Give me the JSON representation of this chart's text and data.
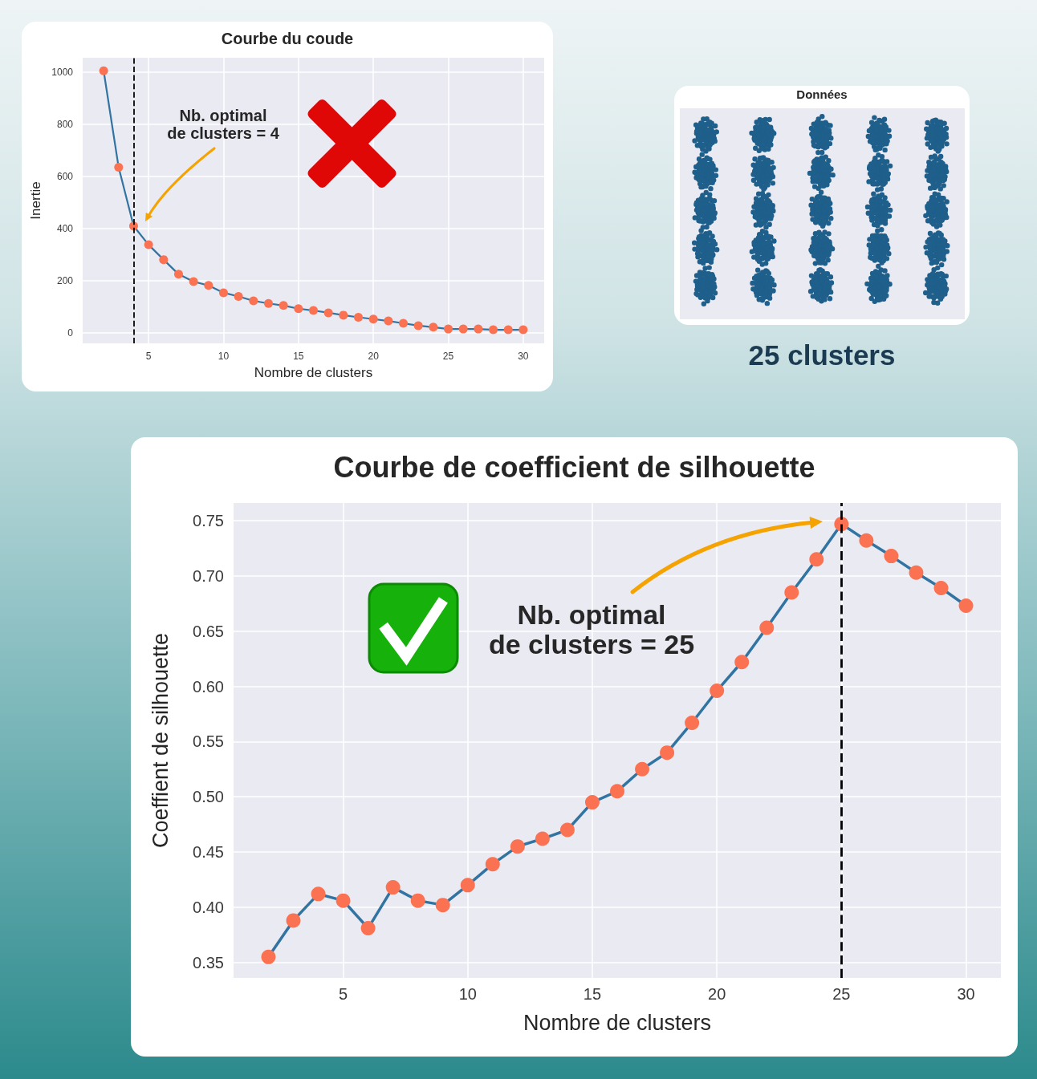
{
  "chart_data": [
    {
      "type": "line",
      "title": "Courbe du coude",
      "xlabel": "Nombre de clusters",
      "ylabel": "Inertie",
      "x": [
        2,
        3,
        4,
        5,
        6,
        7,
        8,
        9,
        10,
        11,
        12,
        13,
        14,
        15,
        16,
        17,
        18,
        19,
        20,
        21,
        22,
        23,
        24,
        25,
        26,
        27,
        28,
        29,
        30
      ],
      "series": [
        {
          "color": "#3274a1",
          "values": [
            1005,
            635,
            410,
            338,
            281,
            225,
            197,
            182,
            154,
            140,
            123,
            113,
            105,
            93,
            86,
            77,
            68,
            60,
            53,
            46,
            37,
            28,
            22,
            15,
            15,
            15,
            12,
            12,
            12
          ]
        }
      ],
      "xlim": [
        0.6,
        31.4
      ],
      "xticks": [
        5,
        10,
        15,
        20,
        25,
        30
      ],
      "ylim": [
        -40,
        1055
      ],
      "yticks": [
        0,
        200,
        400,
        600,
        800,
        1000
      ],
      "ref_lines": [
        {
          "axis": "x",
          "value": 4,
          "color": "#000000",
          "line_style": "dashed"
        }
      ],
      "annotations": [
        "Nb. optimal\nde clusters = 4"
      ],
      "grid": true,
      "marker": "circle",
      "line_style": "solid"
    },
    {
      "type": "other",
      "title": "Données",
      "annotations": [
        "25 clusters"
      ]
    },
    {
      "type": "line",
      "title": "Courbe de coefficient de silhouette",
      "xlabel": "Nombre de clusters",
      "ylabel": "Coeffient de silhouette",
      "x": [
        2,
        3,
        4,
        5,
        6,
        7,
        8,
        9,
        10,
        11,
        12,
        13,
        14,
        15,
        16,
        17,
        18,
        19,
        20,
        21,
        22,
        23,
        24,
        25,
        26,
        27,
        28,
        29,
        30
      ],
      "series": [
        {
          "color": "#3274a1",
          "values": [
            0.355,
            0.388,
            0.412,
            0.406,
            0.381,
            0.418,
            0.406,
            0.402,
            0.42,
            0.439,
            0.455,
            0.462,
            0.47,
            0.495,
            0.505,
            0.525,
            0.54,
            0.567,
            0.596,
            0.622,
            0.653,
            0.685,
            0.715,
            0.747,
            0.732,
            0.718,
            0.703,
            0.689,
            0.673
          ]
        }
      ],
      "xlim": [
        0.6,
        31.4
      ],
      "xticks": [
        5,
        10,
        15,
        20,
        25,
        30
      ],
      "ylim": [
        0.336,
        0.766
      ],
      "yticks": [
        {
          "value": 0.35,
          "label": "0.35"
        },
        {
          "value": 0.4,
          "label": "0.40"
        },
        {
          "value": 0.45,
          "label": "0.45"
        },
        {
          "value": 0.5,
          "label": "0.50"
        },
        {
          "value": 0.55,
          "label": "0.55"
        },
        {
          "value": 0.6,
          "label": "0.60"
        },
        {
          "value": 0.65,
          "label": "0.65"
        },
        {
          "value": 0.7,
          "label": "0.70"
        },
        {
          "value": 0.75,
          "label": "0.75"
        }
      ],
      "ref_lines": [
        {
          "axis": "x",
          "value": 25,
          "color": "#000000",
          "line_style": "dashed"
        }
      ],
      "annotations": [
        "Nb. optimal\nde clusters = 25"
      ],
      "grid": true,
      "marker": "circle",
      "line_style": "solid"
    }
  ]
}
